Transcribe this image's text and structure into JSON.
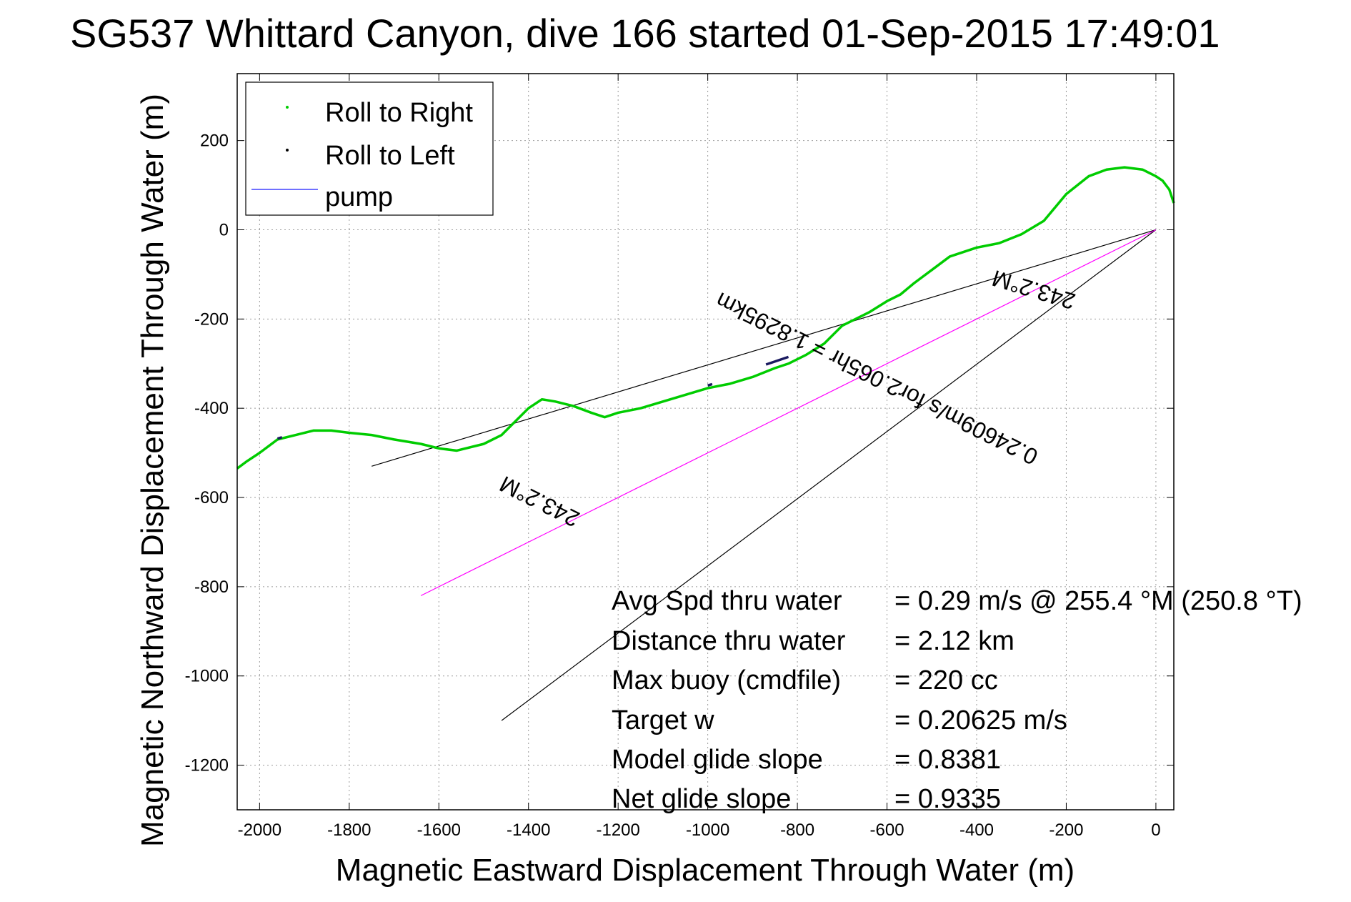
{
  "chart_data": {
    "type": "line",
    "title": "SG537 Whittard Canyon, dive 166 started 01-Sep-2015 17:49:01",
    "xlabel": "Magnetic Eastward Displacement Through Water (m)",
    "ylabel": "Magnetic Northward Displacement Through Water (m)",
    "xlim": [
      -2050,
      40
    ],
    "ylim": [
      -1300,
      350
    ],
    "grid": true,
    "x_ticks": [
      -2000,
      -1800,
      -1600,
      -1400,
      -1200,
      -1000,
      -800,
      -600,
      -400,
      -200,
      0
    ],
    "y_ticks": [
      200,
      0,
      -200,
      -400,
      -600,
      -800,
      -1000,
      -1200
    ],
    "legend": {
      "position": "top-left",
      "entries": [
        {
          "label": "Roll to Right",
          "color": "#00cc00",
          "marker": "dot"
        },
        {
          "label": "Roll to Left",
          "color": "#000000",
          "marker": "dot"
        },
        {
          "label": "pump",
          "color": "#4040ff",
          "marker": "line"
        }
      ]
    },
    "series": [
      {
        "name": "Roll to Right",
        "color": "#00cc00",
        "x": [
          40,
          30,
          15,
          0,
          -30,
          -70,
          -110,
          -150,
          -200,
          -250,
          -300,
          -350,
          -400,
          -460,
          -500,
          -540,
          -570,
          -600,
          -640,
          -700,
          -740,
          -780,
          -820,
          -850,
          -900,
          -950,
          -1000,
          -1050,
          -1100,
          -1150,
          -1200,
          -1230,
          -1260,
          -1300,
          -1340,
          -1370,
          -1400,
          -1430,
          -1460,
          -1500,
          -1560,
          -1600,
          -1640,
          -1700,
          -1750,
          -1800,
          -1840,
          -1880,
          -1920,
          -1960,
          -2000,
          -2030,
          -2050
        ],
        "y": [
          60,
          90,
          110,
          120,
          135,
          140,
          135,
          120,
          80,
          20,
          -10,
          -30,
          -40,
          -60,
          -90,
          -120,
          -145,
          -160,
          -185,
          -215,
          -255,
          -280,
          -300,
          -310,
          -330,
          -345,
          -355,
          -370,
          -385,
          -400,
          -410,
          -420,
          -410,
          -395,
          -385,
          -380,
          -400,
          -430,
          -460,
          -480,
          -495,
          -490,
          -480,
          -470,
          -460,
          -455,
          -450,
          -450,
          -460,
          -470,
          -500,
          -520,
          -535
        ]
      }
    ],
    "roll_left_segments": [
      {
        "x": [
          -870,
          -820
        ],
        "y": [
          -302,
          -285
        ]
      },
      {
        "x": [
          -1000,
          -990
        ],
        "y": [
          -349,
          -346
        ]
      },
      {
        "x": [
          -1960,
          -1950
        ],
        "y": [
          -468,
          -465
        ]
      }
    ],
    "reference_lines": [
      {
        "color": "#000000",
        "x": [
          0,
          -1750
        ],
        "y": [
          0,
          -530
        ]
      },
      {
        "color": "#000000",
        "x": [
          0,
          -1460
        ],
        "y": [
          0,
          -1100
        ]
      },
      {
        "color": "#ff00ff",
        "x": [
          0,
          -1640
        ],
        "y": [
          0,
          -820
        ]
      }
    ],
    "annotations": [
      {
        "text": "243.2°M",
        "anchor": "upper"
      },
      {
        "text": "0.24609m/s for2.065hr = 1.8295km",
        "anchor": "middle"
      },
      {
        "text": "243.2°M",
        "anchor": "lower"
      }
    ]
  },
  "stats": {
    "labels": [
      "Avg Spd thru water",
      "Distance thru water",
      "Max buoy (cmdfile)",
      "Target w",
      "Model glide slope",
      "Net glide slope"
    ],
    "values": [
      "=  0.29 m/s @ 255.4 °M (250.8 °T)",
      "=  2.12 km",
      "= 220 cc",
      "= 0.20625 m/s",
      "= 0.8381",
      "= 0.9335"
    ]
  }
}
